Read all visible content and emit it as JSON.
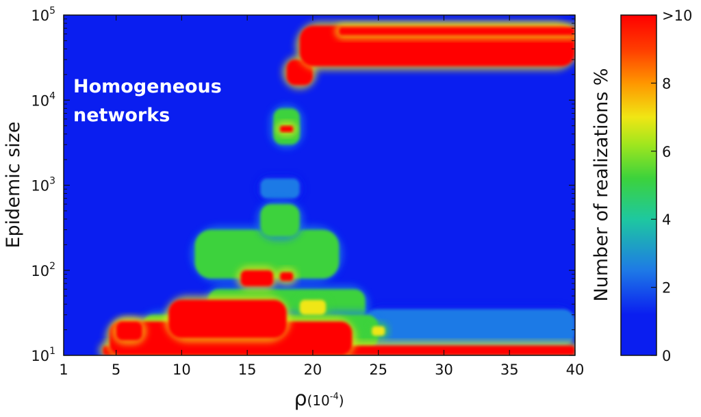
{
  "chart_data": {
    "type": "heatmap",
    "annotation": [
      "Homogeneous",
      "networks"
    ],
    "xlabel": "ρ",
    "xlabel_unit": "(10",
    "xlabel_unit_exp": "-4",
    "xlabel_unit_close": ")",
    "ylabel": "Epidemic size",
    "colorbar_label": "Number of realizations %",
    "xlim": [
      1,
      40
    ],
    "x_ticks": [
      1,
      5,
      10,
      15,
      20,
      25,
      30,
      35,
      40
    ],
    "x_tick_labels": [
      "1",
      "5",
      "10",
      "15",
      "20",
      "25",
      "30",
      "35",
      "40"
    ],
    "y_scale": "log",
    "ylim": [
      10,
      100000
    ],
    "y_ticks": [
      10,
      100,
      1000,
      10000,
      100000
    ],
    "y_tick_base": "10",
    "y_tick_exponents": [
      "1",
      "2",
      "3",
      "4",
      "5"
    ],
    "colorbar_range": [
      0,
      10
    ],
    "colorbar_ticks": [
      0,
      2,
      4,
      6,
      8,
      10
    ],
    "colorbar_tick_labels": [
      "0",
      "2",
      "4",
      "6",
      "8",
      ">10"
    ],
    "colors": {
      "zero": "#0a1ef0",
      "low": "#1e7ae6",
      "mid": "#3cd23c",
      "high": "#f0e614",
      "max": "#ff0000"
    },
    "regions": [
      {
        "x": [
          4,
          40
        ],
        "y": [
          10,
          13
        ],
        "value": 10
      },
      {
        "x": [
          4.5,
          23
        ],
        "y": [
          10,
          25
        ],
        "value": 10
      },
      {
        "x": [
          9,
          18
        ],
        "y": [
          16,
          45
        ],
        "value": 10
      },
      {
        "x": [
          5,
          7
        ],
        "y": [
          15,
          25
        ],
        "value": 10
      },
      {
        "x": [
          14.5,
          17
        ],
        "y": [
          65,
          100
        ],
        "value": 10
      },
      {
        "x": [
          17.5,
          18.5
        ],
        "y": [
          75,
          95
        ],
        "value": 10
      },
      {
        "x": [
          17.5,
          18.5
        ],
        "y": [
          4200,
          5000
        ],
        "value": 10
      },
      {
        "x": [
          18,
          20
        ],
        "y": [
          15000,
          30000
        ],
        "value": 10
      },
      {
        "x": [
          19,
          40
        ],
        "y": [
          25000,
          75000
        ],
        "value": 10
      },
      {
        "x": [
          22,
          40
        ],
        "y": [
          58000,
          72000
        ],
        "value": 10
      },
      {
        "x": [
          24.5,
          25.5
        ],
        "y": [
          17,
          22
        ],
        "value": 7
      },
      {
        "x": [
          19,
          21
        ],
        "y": [
          30,
          45
        ],
        "value": 7
      },
      {
        "x": [
          12,
          24
        ],
        "y": [
          25,
          60
        ],
        "value": 5
      },
      {
        "x": [
          11,
          22
        ],
        "y": [
          80,
          300
        ],
        "value": 4
      },
      {
        "x": [
          16,
          19
        ],
        "y": [
          250,
          600
        ],
        "value": 4
      },
      {
        "x": [
          17,
          19
        ],
        "y": [
          3000,
          8000
        ],
        "value": 4
      },
      {
        "x": [
          16,
          19
        ],
        "y": [
          700,
          1200
        ],
        "value": 2
      },
      {
        "x": [
          7,
          25
        ],
        "y": [
          12,
          30
        ],
        "value": 6
      },
      {
        "x": [
          24,
          40
        ],
        "y": [
          13,
          35
        ],
        "value": 1
      }
    ]
  }
}
